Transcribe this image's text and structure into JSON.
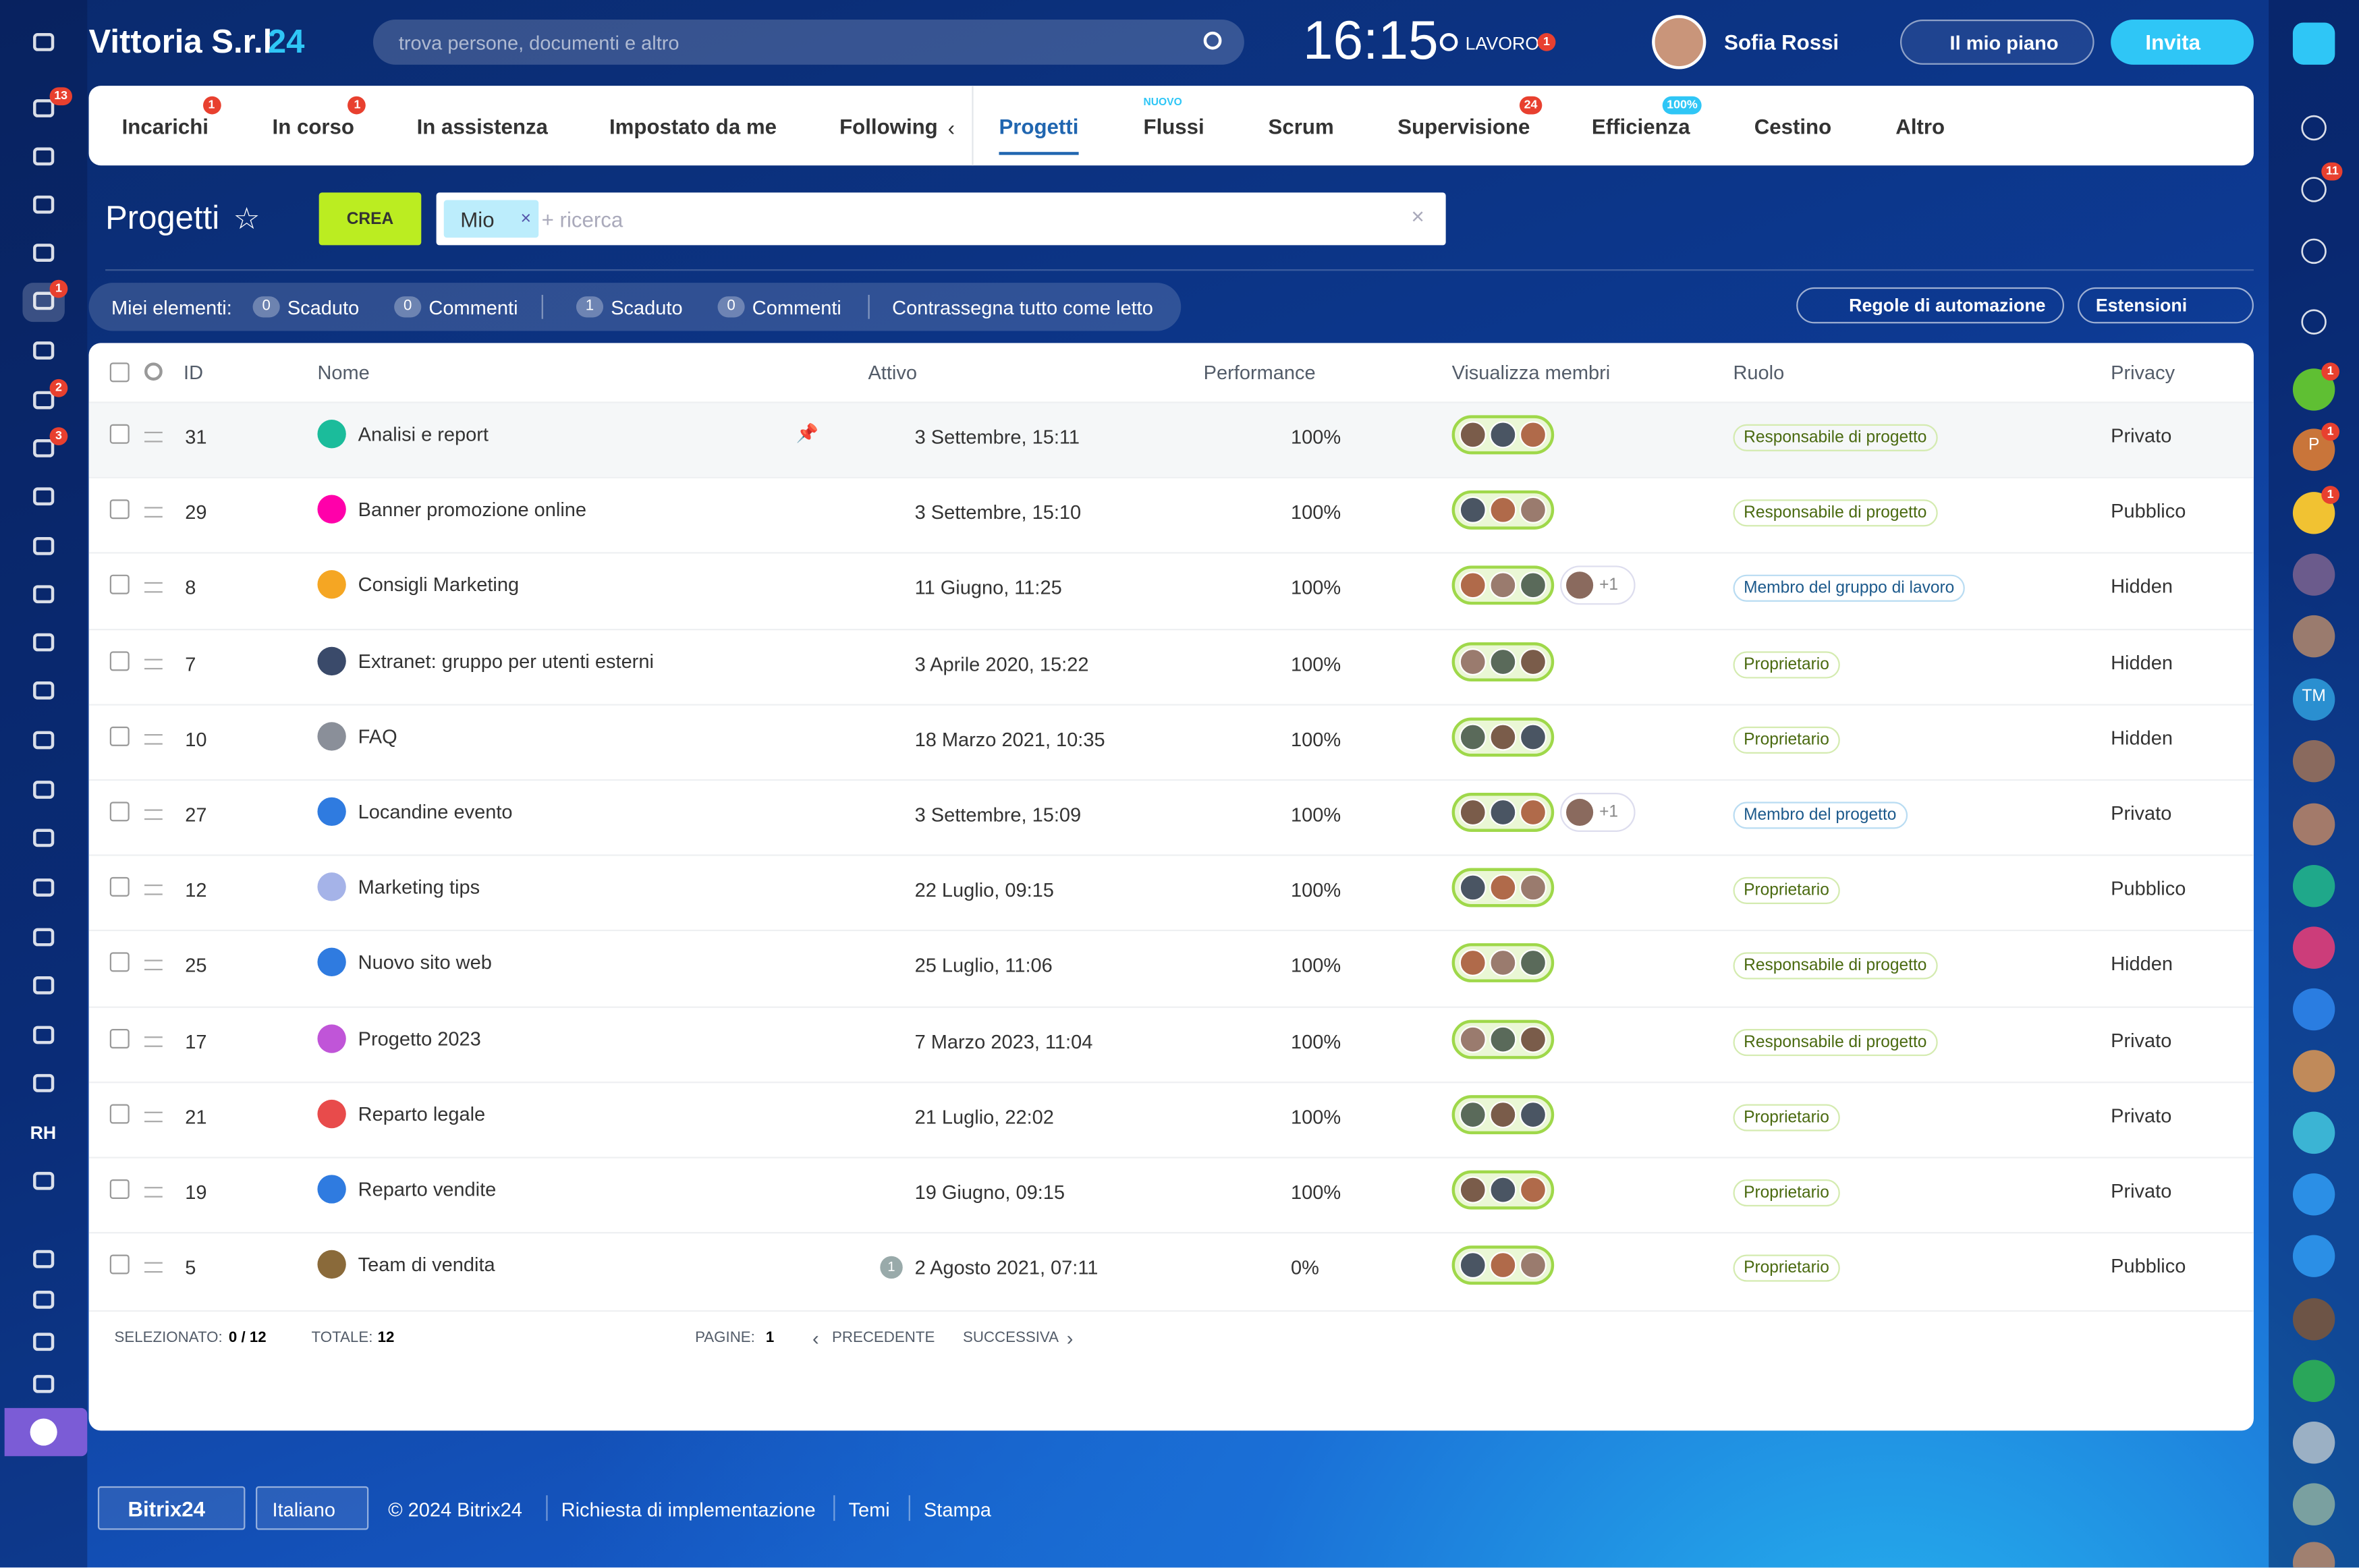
{
  "header": {
    "logo": "Vittoria S.r.l",
    "logo_num": "24",
    "search_placeholder": "trova persone, documenti e altro",
    "clock": "16:15",
    "status": "LAVORO",
    "status_badge": "1",
    "user": "Sofia Rossi",
    "plan": "Il mio piano",
    "invite": "Invita"
  },
  "left_badges": [
    "13",
    "1",
    "2",
    "3"
  ],
  "left_text": "RH",
  "right_badges": [
    "11",
    "1",
    "1",
    "1"
  ],
  "right_initials": [
    "P",
    "TM"
  ],
  "tabs": [
    {
      "label": "Incarichi",
      "badge": "1"
    },
    {
      "label": "In corso",
      "badge": "1"
    },
    {
      "label": "In assistenza"
    },
    {
      "label": "Impostato da me"
    },
    {
      "label": "Following"
    },
    {
      "label": "Progetti"
    },
    {
      "label": "Flussi",
      "tag": "NUOVO"
    },
    {
      "label": "Scrum"
    },
    {
      "label": "Supervisione",
      "badge": "24"
    },
    {
      "label": "Efficienza",
      "badge": "100%"
    },
    {
      "label": "Cestino"
    },
    {
      "label": "Altro"
    }
  ],
  "page_title": "Progetti",
  "create": "CREA",
  "filter_tag": "Mio",
  "filter_placeholder": "+ ricerca",
  "counters": {
    "label": "Miei elementi:",
    "items": [
      {
        "count": "0",
        "label": "Scaduto"
      },
      {
        "count": "0",
        "label": "Commenti"
      },
      {
        "count": "1",
        "label": "Scaduto"
      },
      {
        "count": "0",
        "label": "Commenti"
      }
    ],
    "mark_all": "Contrassegna tutto come letto"
  },
  "automation": "Regole di automazione",
  "extensions": "Estensioni",
  "table": {
    "columns": [
      "ID",
      "Nome",
      "Attivo",
      "Performance",
      "Visualizza membri",
      "Ruolo",
      "Privacy"
    ],
    "rows": [
      {
        "id": "31",
        "name": "Analisi e report",
        "active": "3 Settembre, 15:11",
        "performance": "100%",
        "role": "Responsabile di progetto",
        "privacy": "Privato"
      },
      {
        "id": "29",
        "name": "Banner promozione online",
        "active": "3 Settembre, 15:10",
        "performance": "100%",
        "role": "Responsabile di progetto",
        "privacy": "Pubblico"
      },
      {
        "id": "8",
        "name": "Consigli Marketing",
        "active": "11 Giugno, 11:25",
        "performance": "100%",
        "extra": "+1",
        "role": "Membro del gruppo di lavoro",
        "privacy": "Hidden"
      },
      {
        "id": "7",
        "name": "Extranet: gruppo per utenti esterni",
        "active": "3 Aprile 2020, 15:22",
        "performance": "100%",
        "role": "Proprietario",
        "privacy": "Hidden"
      },
      {
        "id": "10",
        "name": "FAQ",
        "active": "18 Marzo 2021, 10:35",
        "performance": "100%",
        "role": "Proprietario",
        "privacy": "Hidden"
      },
      {
        "id": "27",
        "name": "Locandine evento",
        "active": "3 Settembre, 15:09",
        "performance": "100%",
        "extra": "+1",
        "role": "Membro del progetto",
        "privacy": "Privato"
      },
      {
        "id": "12",
        "name": "Marketing tips",
        "active": "22 Luglio, 09:15",
        "performance": "100%",
        "role": "Proprietario",
        "privacy": "Pubblico"
      },
      {
        "id": "25",
        "name": "Nuovo sito web",
        "active": "25 Luglio, 11:06",
        "performance": "100%",
        "role": "Responsabile di progetto",
        "privacy": "Hidden"
      },
      {
        "id": "17",
        "name": "Progetto 2023",
        "active": "7 Marzo 2023, 11:04",
        "performance": "100%",
        "role": "Responsabile di progetto",
        "privacy": "Privato"
      },
      {
        "id": "21",
        "name": "Reparto legale",
        "active": "21 Luglio, 22:02",
        "performance": "100%",
        "role": "Proprietario",
        "privacy": "Privato"
      },
      {
        "id": "19",
        "name": "Reparto vendite",
        "active": "19 Giugno, 09:15",
        "performance": "100%",
        "role": "Proprietario",
        "privacy": "Privato"
      },
      {
        "id": "5",
        "name": "Team di vendita",
        "active_badge": "1",
        "active": "2 Agosto 2021, 07:11",
        "performance": "0%",
        "role": "Proprietario",
        "privacy": "Pubblico"
      }
    ]
  },
  "footer": {
    "selected_label": "SELEZIONATO:",
    "selected": "0 / 12",
    "total_label": "TOTALE:",
    "total": "12",
    "pages_label": "PAGINE:",
    "page": "1",
    "prev": "PRECEDENTE",
    "next": "SUCCESSIVA"
  },
  "bottom": {
    "brand": "Bitrix24",
    "language": "Italiano",
    "copyright": "© 2024 Bitrix24",
    "links": [
      "Richiesta di implementazione",
      "Temi",
      "Stampa"
    ]
  }
}
